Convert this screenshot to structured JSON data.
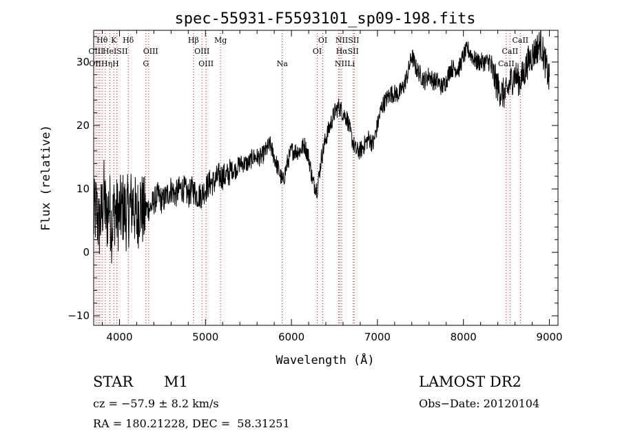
{
  "chart_data": {
    "type": "line",
    "title": "spec-55931-F5593101_sp09-198.fits",
    "xlabel": "Wavelength (Å)",
    "ylabel": "Flux (relative)",
    "xlim": [
      3700,
      9100
    ],
    "ylim": [
      -11.5,
      35
    ],
    "xticks": [
      4000,
      5000,
      6000,
      7000,
      8000,
      9000
    ],
    "yticks": [
      -10,
      0,
      10,
      20,
      30
    ],
    "grid": false,
    "series": [
      {
        "values_description_note_free": true,
        "x": [
          3700,
          3730,
          3760,
          3790,
          3820,
          3850,
          3880,
          3910,
          3940,
          3970,
          4000,
          4040,
          4080,
          4120,
          4160,
          4200,
          4240,
          4280,
          4320,
          4360,
          4400,
          4450,
          4500,
          4550,
          4600,
          4650,
          4700,
          4750,
          4800,
          4850,
          4900,
          4950,
          5000,
          5050,
          5100,
          5150,
          5200,
          5250,
          5300,
          5350,
          5400,
          5450,
          5500,
          5550,
          5600,
          5650,
          5700,
          5750,
          5800,
          5850,
          5900,
          5950,
          6000,
          6050,
          6100,
          6150,
          6200,
          6250,
          6300,
          6350,
          6400,
          6450,
          6500,
          6550,
          6600,
          6650,
          6700,
          6750,
          6800,
          6850,
          6900,
          6950,
          7000,
          7050,
          7100,
          7150,
          7200,
          7250,
          7300,
          7350,
          7400,
          7450,
          7500,
          7550,
          7600,
          7650,
          7700,
          7750,
          7800,
          7850,
          7900,
          7950,
          8000,
          8050,
          8100,
          8150,
          8200,
          8250,
          8300,
          8350,
          8400,
          8450,
          8500,
          8550,
          8600,
          8650,
          8700,
          8750,
          8800,
          8850,
          8900,
          8950,
          9000
        ],
        "y": [
          5,
          7,
          4,
          6,
          9,
          5,
          8,
          4,
          7,
          6,
          6,
          7,
          6,
          7,
          8,
          5,
          8,
          6,
          7,
          7,
          8,
          9,
          8,
          9,
          10,
          9,
          10,
          10,
          9,
          10,
          9,
          9,
          10,
          11,
          11,
          12,
          12,
          12,
          13,
          13,
          14,
          14,
          14,
          15,
          15,
          15,
          16,
          17,
          15,
          13,
          11,
          14,
          16,
          16,
          16,
          17,
          15,
          11,
          10,
          15,
          18,
          20,
          22,
          23,
          22,
          21,
          18,
          16,
          16,
          17,
          18,
          17,
          20,
          23,
          24,
          25,
          25,
          25,
          26,
          28,
          31,
          29,
          28,
          27,
          28,
          27,
          27,
          26,
          27,
          29,
          29,
          29,
          31,
          32,
          31,
          30,
          30,
          30,
          30,
          28,
          26,
          25,
          25,
          27,
          28,
          27,
          28,
          30,
          31,
          32,
          33,
          30,
          27
        ]
      }
    ],
    "line_markers": [
      {
        "label": "Hθ",
        "x": 3798,
        "row": 1
      },
      {
        "label": "K",
        "x": 3934,
        "row": 1
      },
      {
        "label": "Hδ",
        "x": 4102,
        "row": 1
      },
      {
        "label": "Hβ",
        "x": 4861,
        "row": 1
      },
      {
        "label": "Mg",
        "x": 5175,
        "row": 1
      },
      {
        "label": "OI",
        "x": 6364,
        "row": 1
      },
      {
        "label": "NIISII",
        "x": 6650,
        "row": 1
      },
      {
        "label": "CaII",
        "x": 8662,
        "row": 1
      },
      {
        "label": "OIII",
        "x": 3727,
        "row": 2
      },
      {
        "label": "HeISII",
        "x": 3950,
        "row": 2
      },
      {
        "label": "OIII",
        "x": 4363,
        "row": 2
      },
      {
        "label": "OIII",
        "x": 4959,
        "row": 2
      },
      {
        "label": "OI",
        "x": 6300,
        "row": 2
      },
      {
        "label": "HαSII",
        "x": 6650,
        "row": 2
      },
      {
        "label": "CaII",
        "x": 8542,
        "row": 2
      },
      {
        "label": "OIIHηH",
        "x": 3820,
        "row": 3
      },
      {
        "label": "G",
        "x": 4307,
        "row": 3
      },
      {
        "label": "OIII",
        "x": 5007,
        "row": 3
      },
      {
        "label": "Na",
        "x": 5893,
        "row": 3
      },
      {
        "label": "NIILi",
        "x": 6620,
        "row": 3
      },
      {
        "label": "CaII",
        "x": 8498,
        "row": 3
      }
    ],
    "marker_lines_x": [
      3727,
      3750,
      3771,
      3798,
      3835,
      3889,
      3934,
      3970,
      4102,
      4307,
      4340,
      4861,
      4959,
      5007,
      5175,
      5893,
      6300,
      6364,
      6548,
      6563,
      6584,
      6717,
      6731,
      8498,
      8542,
      8662
    ]
  },
  "info": {
    "class": "STAR",
    "subclass": "M1",
    "survey": "LAMOST DR2",
    "cz": "cz = −57.9 ± 8.2 km/s",
    "obs_date": "Obs−Date: 20120104",
    "coords": "RA = 180.21228, DEC =  58.31251"
  }
}
